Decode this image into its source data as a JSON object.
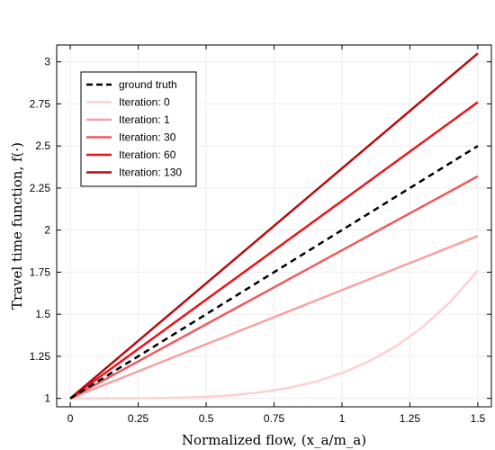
{
  "chart_data": {
    "type": "line",
    "xlabel": "Normalized flow, (x_a/m_a)",
    "ylabel": "Travel time function, f(·)",
    "xlim": [
      -0.05,
      1.55
    ],
    "ylim": [
      0.95,
      3.1
    ],
    "x_ticks": [
      0,
      0.25,
      0.5,
      0.75,
      1,
      1.25,
      1.5
    ],
    "x_tick_labels": [
      "0",
      "0.25",
      "0.5",
      "0.75",
      "1",
      "1.25",
      "1.5"
    ],
    "y_ticks": [
      1,
      1.25,
      1.5,
      1.75,
      2,
      2.25,
      2.5,
      2.75,
      3
    ],
    "y_tick_labels": [
      "1",
      "1.25",
      "1.5",
      "1.75",
      "2",
      "2.25",
      "2.5",
      "2.75",
      "3"
    ],
    "grid": true,
    "legend_position": "top-left",
    "series": [
      {
        "name": "ground truth",
        "color": "#000000",
        "dashed": true,
        "x": [
          0,
          1.5
        ],
        "y": [
          1,
          2.5
        ]
      },
      {
        "name": "Iteration: 0",
        "color": "#fcd0d4",
        "dashed": false,
        "x": [
          0,
          0.1,
          0.2,
          0.3,
          0.4,
          0.5,
          0.6,
          0.7,
          0.8,
          0.9,
          1.0,
          1.1,
          1.2,
          1.3,
          1.4,
          1.5
        ],
        "y": [
          1.0,
          1.0,
          1.0,
          1.001,
          1.004,
          1.009,
          1.019,
          1.036,
          1.061,
          1.098,
          1.15,
          1.22,
          1.311,
          1.428,
          1.576,
          1.759
        ]
      },
      {
        "name": "Iteration: 1",
        "color": "#f5a0a4",
        "dashed": false,
        "x": [
          0,
          1.5
        ],
        "y": [
          1,
          1.965
        ]
      },
      {
        "name": "Iteration: 30",
        "color": "#ee5a5e",
        "dashed": false,
        "x": [
          0,
          1.5
        ],
        "y": [
          1,
          2.32
        ]
      },
      {
        "name": "Iteration: 60",
        "color": "#e8141c",
        "dashed": false,
        "x": [
          0,
          1.5
        ],
        "y": [
          1,
          2.76
        ]
      },
      {
        "name": "Iteration: 130",
        "color": "#b70b12",
        "dashed": false,
        "x": [
          0,
          1.5
        ],
        "y": [
          1,
          3.05
        ]
      }
    ]
  }
}
